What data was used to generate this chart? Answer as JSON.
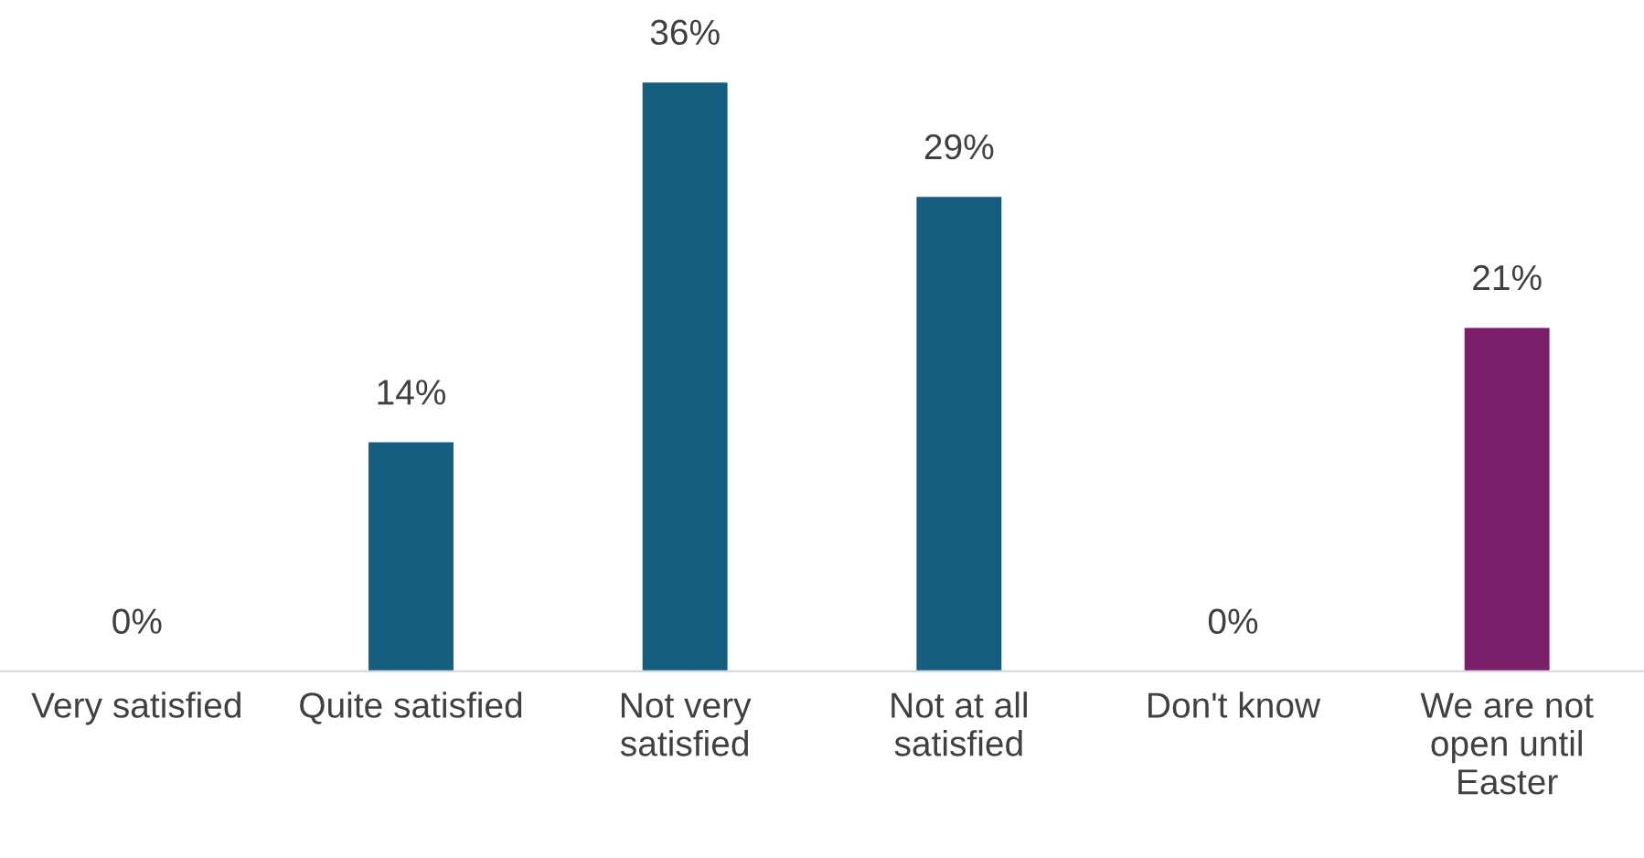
{
  "chart_data": {
    "type": "bar",
    "categories": [
      "Very satisfied",
      "Quite satisfied",
      "Not very\nsatisfied",
      "Not at all\nsatisfied",
      "Don't know",
      "We are not\nopen until\nEaster"
    ],
    "values": [
      0,
      14,
      36,
      29,
      0,
      21
    ],
    "colors": [
      "#155e80",
      "#155e80",
      "#155e80",
      "#155e80",
      "#155e80",
      "#7b1f6a"
    ],
    "value_labels": [
      "0%",
      "14%",
      "36%",
      "29%",
      "0%",
      "21%"
    ],
    "tick_labels": "x",
    "grid": false,
    "legend": false
  }
}
